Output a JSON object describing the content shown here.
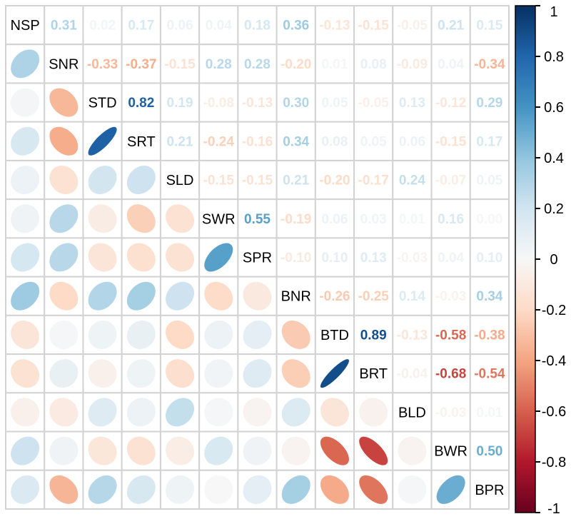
{
  "chart_data": {
    "type": "heatmap",
    "subtype": "correlation-matrix",
    "title": "",
    "upper_triangle": "correlation coefficients (numbers)",
    "lower_triangle": "correlation ellipses",
    "variables": [
      "NSP",
      "SNR",
      "STD",
      "SRT",
      "SLD",
      "SWR",
      "SPR",
      "BNR",
      "BTD",
      "BRT",
      "BLD",
      "BWR",
      "BPR"
    ],
    "rows": [
      [
        0.31,
        0.02,
        0.17,
        0.06,
        0.04,
        0.18,
        0.36,
        -0.13,
        -0.15,
        -0.05,
        0.21,
        0.15
      ],
      [
        -0.33,
        -0.37,
        -0.15,
        0.28,
        0.28,
        -0.2,
        0.01,
        0.08,
        -0.09,
        0.04,
        -0.34
      ],
      [
        0.82,
        0.19,
        -0.08,
        -0.13,
        0.3,
        0.05,
        -0.05,
        0.13,
        -0.12,
        0.29
      ],
      [
        0.21,
        -0.24,
        -0.16,
        0.34,
        0.08,
        0.05,
        0.06,
        -0.15,
        0.17
      ],
      [
        -0.15,
        -0.15,
        0.21,
        -0.2,
        -0.17,
        0.24,
        -0.07,
        0.05
      ],
      [
        0.55,
        -0.19,
        0.06,
        0.03,
        0.01,
        0.16,
        0.0
      ],
      [
        -0.1,
        0.1,
        0.13,
        -0.03,
        0.04,
        0.1
      ],
      [
        -0.26,
        -0.25,
        0.14,
        -0.03,
        0.34
      ],
      [
        0.89,
        -0.13,
        -0.58,
        -0.38
      ],
      [
        -0.04,
        -0.68,
        -0.54
      ],
      [
        -0.03,
        0.01
      ],
      [
        0.5
      ],
      []
    ],
    "value_range": [
      -1,
      1
    ],
    "legend_position": "right",
    "grid": true,
    "colorbar": {
      "ticks": [
        "1",
        "0.8",
        "0.6",
        "0.4",
        "0.2",
        "0",
        "-0.2",
        "-0.4",
        "-0.6",
        "-0.8",
        "-1"
      ],
      "tick_values": [
        1,
        0.8,
        0.6,
        0.4,
        0.2,
        0,
        -0.2,
        -0.4,
        -0.6,
        -0.8,
        -1
      ],
      "palette_neg_to_pos": [
        "#67001F",
        "#B2182B",
        "#D6604D",
        "#F4A582",
        "#FDDBC7",
        "#F7F7F7",
        "#D1E5F0",
        "#92C5DE",
        "#4393C3",
        "#2166AC",
        "#053061"
      ]
    },
    "colors": {
      "grid": "#d2d2d2",
      "label": "#000000",
      "background": "#ffffff",
      "colorbar_border": "#000000"
    }
  }
}
